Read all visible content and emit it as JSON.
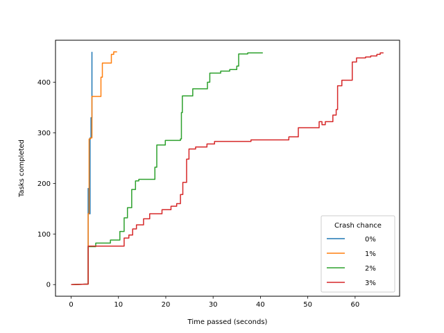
{
  "chart_data": {
    "type": "line",
    "xlabel": "Time passed (seconds)",
    "ylabel": "Tasks completed",
    "xlim": [
      -3.3,
      69.4
    ],
    "ylim": [
      -23,
      483
    ],
    "xticks": [
      0,
      10,
      20,
      30,
      40,
      50,
      60
    ],
    "yticks": [
      0,
      100,
      200,
      300,
      400
    ],
    "grid": false,
    "legend": {
      "title": "Crash chance",
      "placement": "lower-right"
    },
    "series": [
      {
        "name": "0%",
        "color": "#1f77b4",
        "points": [
          [
            0,
            0
          ],
          [
            3.6,
            1
          ],
          [
            3.6,
            190
          ],
          [
            3.8,
            190
          ],
          [
            3.8,
            140
          ],
          [
            4.0,
            140
          ],
          [
            4.0,
            290
          ],
          [
            4.2,
            290
          ],
          [
            4.2,
            330
          ],
          [
            4.4,
            330
          ],
          [
            4.4,
            460
          ]
        ]
      },
      {
        "name": "1%",
        "color": "#ff7f0e",
        "points": [
          [
            0,
            0
          ],
          [
            3.6,
            1
          ],
          [
            3.6,
            140
          ],
          [
            3.8,
            140
          ],
          [
            3.8,
            288
          ],
          [
            4.1,
            288
          ],
          [
            4.1,
            290
          ],
          [
            4.4,
            290
          ],
          [
            4.4,
            372
          ],
          [
            6.3,
            372
          ],
          [
            6.3,
            410
          ],
          [
            6.6,
            410
          ],
          [
            6.6,
            438
          ],
          [
            8.5,
            438
          ],
          [
            8.5,
            455
          ],
          [
            9.0,
            455
          ],
          [
            9.0,
            460
          ],
          [
            9.7,
            460
          ]
        ]
      },
      {
        "name": "2%",
        "color": "#2ca02c",
        "points": [
          [
            0,
            0
          ],
          [
            3.6,
            1
          ],
          [
            3.6,
            75
          ],
          [
            5.2,
            75
          ],
          [
            5.2,
            82
          ],
          [
            8.3,
            82
          ],
          [
            8.3,
            88
          ],
          [
            10.3,
            88
          ],
          [
            10.3,
            105
          ],
          [
            11.2,
            105
          ],
          [
            11.2,
            132
          ],
          [
            11.9,
            132
          ],
          [
            11.9,
            152
          ],
          [
            12.8,
            152
          ],
          [
            12.8,
            188
          ],
          [
            13.6,
            188
          ],
          [
            13.6,
            205
          ],
          [
            14.3,
            205
          ],
          [
            14.3,
            208
          ],
          [
            17.7,
            208
          ],
          [
            17.7,
            232
          ],
          [
            18.1,
            232
          ],
          [
            18.1,
            276
          ],
          [
            19.9,
            276
          ],
          [
            19.9,
            285
          ],
          [
            23.1,
            285
          ],
          [
            23.1,
            288
          ],
          [
            23.3,
            288
          ],
          [
            23.3,
            340
          ],
          [
            23.5,
            340
          ],
          [
            23.5,
            373
          ],
          [
            25.7,
            373
          ],
          [
            25.7,
            387
          ],
          [
            28.8,
            387
          ],
          [
            28.8,
            400
          ],
          [
            29.3,
            400
          ],
          [
            29.3,
            418
          ],
          [
            31.6,
            418
          ],
          [
            31.6,
            422
          ],
          [
            33.5,
            422
          ],
          [
            33.5,
            425
          ],
          [
            35.0,
            425
          ],
          [
            35.0,
            432
          ],
          [
            35.4,
            432
          ],
          [
            35.4,
            456
          ],
          [
            37.3,
            456
          ],
          [
            37.3,
            458
          ],
          [
            40.5,
            458
          ]
        ]
      },
      {
        "name": "3%",
        "color": "#d62728",
        "points": [
          [
            0,
            0
          ],
          [
            3.6,
            1
          ],
          [
            3.6,
            76
          ],
          [
            11.2,
            76
          ],
          [
            11.2,
            92
          ],
          [
            12.2,
            92
          ],
          [
            12.2,
            98
          ],
          [
            13.0,
            98
          ],
          [
            13.0,
            110
          ],
          [
            13.8,
            110
          ],
          [
            13.8,
            118
          ],
          [
            15.3,
            118
          ],
          [
            15.3,
            130
          ],
          [
            16.6,
            130
          ],
          [
            16.6,
            140
          ],
          [
            19.2,
            140
          ],
          [
            19.2,
            148
          ],
          [
            21.1,
            148
          ],
          [
            21.1,
            155
          ],
          [
            22.3,
            155
          ],
          [
            22.3,
            160
          ],
          [
            23.1,
            160
          ],
          [
            23.1,
            178
          ],
          [
            23.6,
            178
          ],
          [
            23.6,
            202
          ],
          [
            24.4,
            202
          ],
          [
            24.4,
            248
          ],
          [
            24.9,
            248
          ],
          [
            24.9,
            268
          ],
          [
            26.3,
            268
          ],
          [
            26.3,
            272
          ],
          [
            28.7,
            272
          ],
          [
            28.7,
            278
          ],
          [
            30.3,
            278
          ],
          [
            30.3,
            283
          ],
          [
            38.0,
            283
          ],
          [
            38.0,
            286
          ],
          [
            46.0,
            286
          ],
          [
            46.0,
            292
          ],
          [
            48.0,
            292
          ],
          [
            48.0,
            310
          ],
          [
            52.4,
            310
          ],
          [
            52.4,
            322
          ],
          [
            53.0,
            322
          ],
          [
            53.0,
            316
          ],
          [
            53.7,
            316
          ],
          [
            53.7,
            322
          ],
          [
            55.3,
            322
          ],
          [
            55.3,
            335
          ],
          [
            56.0,
            335
          ],
          [
            56.0,
            346
          ],
          [
            56.3,
            346
          ],
          [
            56.3,
            393
          ],
          [
            57.2,
            393
          ],
          [
            57.2,
            404
          ],
          [
            59.4,
            404
          ],
          [
            59.4,
            440
          ],
          [
            60.3,
            440
          ],
          [
            60.3,
            448
          ],
          [
            62.2,
            448
          ],
          [
            62.2,
            450
          ],
          [
            63.3,
            450
          ],
          [
            63.3,
            452
          ],
          [
            64.6,
            452
          ],
          [
            64.6,
            455
          ],
          [
            65.3,
            455
          ],
          [
            65.3,
            458
          ],
          [
            66.0,
            458
          ]
        ]
      }
    ]
  }
}
